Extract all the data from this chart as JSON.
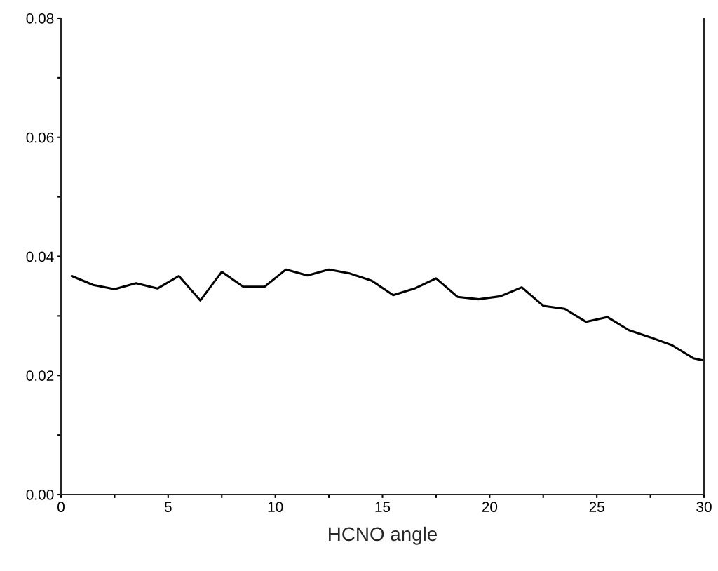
{
  "chart_data": {
    "type": "line",
    "xlabel": "HCNO angle",
    "x": [
      0.5,
      1.5,
      2.5,
      3.5,
      4.5,
      5.5,
      6.5,
      7.5,
      8.5,
      9.5,
      10.5,
      11.5,
      12.5,
      13.5,
      14.5,
      15.5,
      16.5,
      17.5,
      18.5,
      19.5,
      20.5,
      21.5,
      22.5,
      23.5,
      24.5,
      25.5,
      26.5,
      27.5,
      28.5,
      29.5,
      30
    ],
    "series": [
      {
        "color": "#000000",
        "values": [
          0.0367,
          0.0352,
          0.0345,
          0.0355,
          0.0346,
          0.0367,
          0.0326,
          0.0374,
          0.0349,
          0.0349,
          0.0378,
          0.0368,
          0.0378,
          0.0371,
          0.0359,
          0.0335,
          0.0346,
          0.0363,
          0.0332,
          0.0328,
          0.0333,
          0.0348,
          0.0317,
          0.0312,
          0.029,
          0.0298,
          0.0276,
          0.0264,
          0.0251,
          0.0229,
          0.0225
        ]
      }
    ],
    "xlim": [
      0,
      30
    ],
    "ylim": [
      0,
      0.08
    ],
    "xticks": [
      0,
      {
        "value": 2.5,
        "label": null
      },
      5,
      {
        "value": 7.5,
        "label": null
      },
      10,
      {
        "value": 12.5,
        "label": null
      },
      15,
      {
        "value": 17.5,
        "label": null
      },
      20,
      {
        "value": 22.5,
        "label": null
      },
      25,
      {
        "value": 27.5,
        "label": null
      },
      30
    ],
    "yticks": [
      {
        "value": 0,
        "label": "0.00"
      },
      {
        "value": 0.01,
        "label": null
      },
      {
        "value": 0.02,
        "label": "0.02"
      },
      {
        "value": 0.03,
        "label": null
      },
      {
        "value": 0.04,
        "label": "0.04"
      },
      {
        "value": 0.05,
        "label": null
      },
      {
        "value": 0.06,
        "label": "0.06"
      },
      {
        "value": 0.07,
        "label": null
      },
      {
        "value": 0.08,
        "label": "0.08"
      }
    ],
    "grid": false,
    "marker": "none",
    "line_style": "solid"
  }
}
